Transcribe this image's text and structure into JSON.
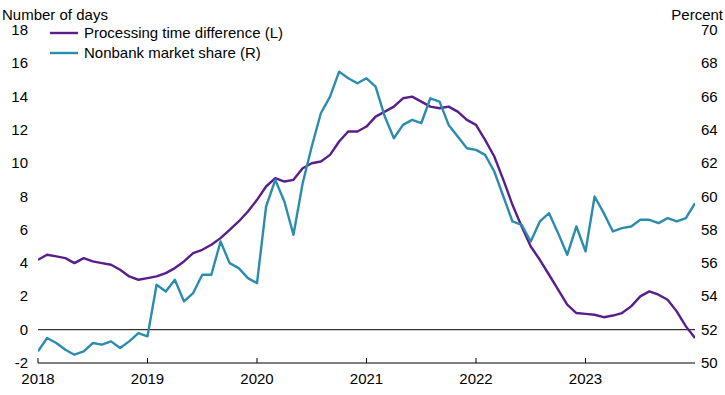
{
  "chart_data": {
    "type": "line",
    "ylabel": "Number of days",
    "y2label": "Percent",
    "x": [
      2018,
      2018.083,
      2018.167,
      2018.25,
      2018.333,
      2018.417,
      2018.5,
      2018.583,
      2018.667,
      2018.75,
      2018.833,
      2018.917,
      2019,
      2019.083,
      2019.167,
      2019.25,
      2019.333,
      2019.417,
      2019.5,
      2019.583,
      2019.667,
      2019.75,
      2019.833,
      2019.917,
      2020,
      2020.083,
      2020.167,
      2020.25,
      2020.333,
      2020.417,
      2020.5,
      2020.583,
      2020.667,
      2020.75,
      2020.833,
      2020.917,
      2021,
      2021.083,
      2021.167,
      2021.25,
      2021.333,
      2021.417,
      2021.5,
      2021.583,
      2021.667,
      2021.75,
      2021.833,
      2021.917,
      2022,
      2022.083,
      2022.167,
      2022.25,
      2022.333,
      2022.417,
      2022.5,
      2022.583,
      2022.667,
      2022.75,
      2022.833,
      2022.917,
      2023,
      2023.083,
      2023.167,
      2023.25,
      2023.333,
      2023.417,
      2023.5,
      2023.583,
      2023.667,
      2023.75,
      2023.833,
      2023.917,
      2024
    ],
    "series": [
      {
        "name": "Processing time difference (L)",
        "color": "#5a1e8c",
        "axis": "y",
        "values": [
          4.2,
          4.5,
          4.4,
          4.3,
          4.0,
          4.3,
          4.1,
          4.0,
          3.9,
          3.6,
          3.2,
          3.0,
          3.1,
          3.2,
          3.4,
          3.7,
          4.1,
          4.6,
          4.8,
          5.1,
          5.5,
          6.0,
          6.5,
          7.1,
          7.8,
          8.6,
          9.1,
          8.9,
          9.0,
          9.7,
          10.0,
          10.1,
          10.5,
          11.3,
          11.9,
          11.9,
          12.2,
          12.8,
          13.1,
          13.4,
          13.9,
          14.0,
          13.7,
          13.4,
          13.3,
          13.4,
          13.1,
          12.6,
          12.3,
          11.4,
          10.4,
          9.0,
          7.5,
          6.2,
          5.0,
          4.2,
          3.3,
          2.4,
          1.5,
          1.0,
          0.95,
          0.9,
          0.75,
          0.85,
          1.0,
          1.4,
          2.0,
          2.3,
          2.1,
          1.8,
          1.1,
          0.2,
          -0.5
        ]
      },
      {
        "name": "Nonbank market share (R)",
        "color": "#2b8cae",
        "axis": "y2",
        "values": [
          50.7,
          51.5,
          51.2,
          50.8,
          50.5,
          50.7,
          51.2,
          51.1,
          51.3,
          50.9,
          51.3,
          51.8,
          51.6,
          54.7,
          54.3,
          55.0,
          53.7,
          54.2,
          55.3,
          55.3,
          57.3,
          56.0,
          55.7,
          55.1,
          54.8,
          59.4,
          61.0,
          59.7,
          57.7,
          60.8,
          63.0,
          65.0,
          66.0,
          67.5,
          67.1,
          66.8,
          67.1,
          66.6,
          64.8,
          63.5,
          64.3,
          64.6,
          64.4,
          65.9,
          65.7,
          64.3,
          63.6,
          62.9,
          62.8,
          62.5,
          61.5,
          60.0,
          58.5,
          58.3,
          57.3,
          58.5,
          59.0,
          57.8,
          56.5,
          58.2,
          56.7,
          60.0,
          59.0,
          57.9,
          58.1,
          58.2,
          58.6,
          58.6,
          58.4,
          58.7,
          58.5,
          58.7,
          59.6
        ]
      }
    ],
    "xlim": [
      2018,
      2024
    ],
    "xticks": [
      2018,
      2019,
      2020,
      2021,
      2022,
      2023
    ],
    "ylim": [
      -2,
      18
    ],
    "yticks": [
      -2,
      0,
      2,
      4,
      6,
      8,
      10,
      12,
      14,
      16,
      18
    ],
    "y2lim": [
      50,
      70
    ],
    "y2ticks": [
      50,
      52,
      54,
      56,
      58,
      60,
      62,
      64,
      66,
      68,
      70
    ],
    "legend": "upper left",
    "grid": false
  }
}
